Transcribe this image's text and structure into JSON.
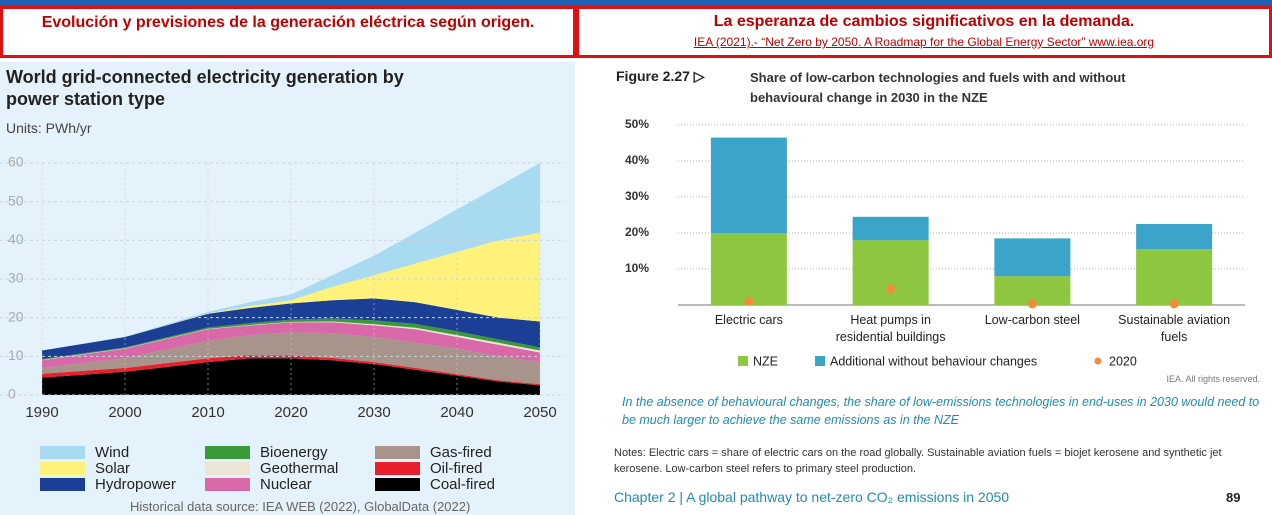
{
  "headers": {
    "left": "Evolución y previsiones de la generación eléctrica según origen.",
    "right": "La esperanza de cambios significativos en la demanda.",
    "right_link": "IEA (2021).- “Net Zero by 2050. A Roadmap for the Global Energy Sector” www.iea.org"
  },
  "chart_data": [
    {
      "type": "area",
      "stacked": true,
      "title": "World grid-connected electricity generation by power station type",
      "subtitle": "Units: PWh/yr",
      "source": "Historical data source: IEA WEB (2022), GlobalData (2022)",
      "x": [
        1990,
        2000,
        2010,
        2015,
        2020,
        2025,
        2030,
        2035,
        2040,
        2045,
        2050
      ],
      "xlim": [
        1990,
        2050
      ],
      "xticks": [
        1990,
        2000,
        2010,
        2020,
        2030,
        2040,
        2050
      ],
      "ylim": [
        0,
        60
      ],
      "yticks": [
        0,
        10,
        20,
        30,
        40,
        50,
        60
      ],
      "grid": true,
      "series": [
        {
          "name": "Wind",
          "color": "#a8daf2",
          "values": [
            0,
            0.1,
            0.4,
            1,
            1.5,
            3,
            5,
            8,
            11,
            14,
            18
          ]
        },
        {
          "name": "Solar",
          "color": "#fff27a",
          "values": [
            0,
            0,
            0.1,
            0.5,
            0.8,
            3.5,
            6,
            10,
            15,
            20,
            23
          ]
        },
        {
          "name": "Hydropower",
          "color": "#1b3f94",
          "values": [
            2.2,
            2.7,
            3.5,
            3.9,
            4.2,
            4.7,
            5.7,
            5.6,
            5.5,
            5.6,
            6.7
          ]
        },
        {
          "name": "Bioenergy",
          "color": "#3a9a3a",
          "values": [
            0.2,
            0.2,
            0.4,
            0.5,
            0.6,
            0.8,
            1.0,
            1.0,
            1.0,
            0.9,
            0.8
          ]
        },
        {
          "name": "Geothermal",
          "color": "#ece4d4",
          "values": [
            0.1,
            0.1,
            0.1,
            0.1,
            0.1,
            0.2,
            0.3,
            0.4,
            0.5,
            0.5,
            0.5
          ]
        },
        {
          "name": "Nuclear",
          "color": "#d968a8",
          "values": [
            2,
            2.5,
            3,
            2.5,
            2.6,
            2.8,
            3,
            3.5,
            3,
            3,
            2.5
          ]
        },
        {
          "name": "Gas-fired",
          "color": "#a8948a",
          "values": [
            1.5,
            2.5,
            4.5,
            5.2,
            6,
            6.4,
            6.5,
            6.5,
            6.6,
            6.2,
            5.7
          ]
        },
        {
          "name": "Oil-fired",
          "color": "#e8202c",
          "values": [
            1,
            1,
            1,
            0.8,
            0.7,
            0.6,
            0.5,
            0.5,
            0.4,
            0.3,
            0.3
          ]
        },
        {
          "name": "Coal-fired",
          "color": "#000000",
          "values": [
            4.5,
            6,
            8.5,
            9.5,
            9.5,
            9,
            8,
            6.5,
            5,
            3.5,
            2.5
          ]
        }
      ]
    },
    {
      "type": "bar",
      "stacked": true,
      "figure": "Figure 2.27 ▷",
      "title": "Share of low-carbon technologies and fuels with and without behavioural change in 2030 in the NZE",
      "categories": [
        "Electric cars",
        "Heat pumps in residential buildings",
        "Low-carbon steel",
        "Sustainable aviation fuels"
      ],
      "ylim": [
        0,
        50
      ],
      "yticks": [
        {
          "value": 10,
          "label": "10%"
        },
        {
          "value": 20,
          "label": "20%"
        },
        {
          "value": 30,
          "label": "30%"
        },
        {
          "value": 40,
          "label": "40%"
        },
        {
          "value": 50,
          "label": "50%"
        }
      ],
      "grid": true,
      "series": [
        {
          "name": "NZE",
          "color": "#8dc63f",
          "values": [
            20,
            18,
            8,
            15.5
          ]
        },
        {
          "name": "Additional without behaviour changes",
          "color": "#3aa5c9",
          "values": [
            26.5,
            6.5,
            10.5,
            7
          ]
        },
        {
          "name": "2020",
          "color": "#f08c3c",
          "type": "scatter",
          "values": [
            1,
            4.5,
            0.3,
            0.3
          ]
        }
      ],
      "credit": "IEA. All rights reserved.",
      "caption": "In the absence of behavioural changes, the share of low-emissions technologies in end-uses in 2030 would need to be much larger to achieve the same emissions as in the NZE",
      "notes": "Notes: Electric cars = share of electric cars on the road globally. Sustainable aviation fuels = biojet kerosene and synthetic jet kerosene. Low-carbon steel refers to primary steel production.",
      "footer": "Chapter 2  |  A global pathway to net-zero CO₂ emissions in 2050",
      "page": "89"
    }
  ]
}
